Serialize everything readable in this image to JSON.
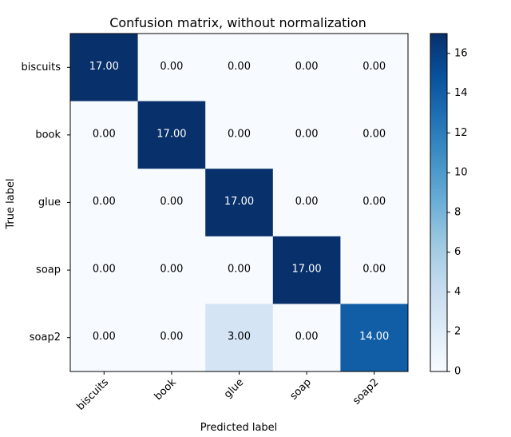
{
  "chart_data": {
    "type": "heatmap",
    "title": "Confusion matrix, without normalization",
    "xlabel": "Predicted label",
    "ylabel": "True label",
    "x_categories": [
      "biscuits",
      "book",
      "glue",
      "soap",
      "soap2"
    ],
    "y_categories": [
      "biscuits",
      "book",
      "glue",
      "soap",
      "soap2"
    ],
    "matrix": [
      [
        17,
        0,
        0,
        0,
        0
      ],
      [
        0,
        17,
        0,
        0,
        0
      ],
      [
        0,
        0,
        17,
        0,
        0
      ],
      [
        0,
        0,
        0,
        17,
        0
      ],
      [
        0,
        0,
        3,
        0,
        14
      ]
    ],
    "value_labels": [
      [
        "17.00",
        "0.00",
        "0.00",
        "0.00",
        "0.00"
      ],
      [
        "0.00",
        "17.00",
        "0.00",
        "0.00",
        "0.00"
      ],
      [
        "0.00",
        "0.00",
        "17.00",
        "0.00",
        "0.00"
      ],
      [
        "0.00",
        "0.00",
        "0.00",
        "17.00",
        "0.00"
      ],
      [
        "0.00",
        "0.00",
        "3.00",
        "0.00",
        "14.00"
      ]
    ],
    "colormap": "Blues",
    "color_range": [
      0,
      17
    ],
    "colorbar_ticks": [
      "0",
      "2",
      "4",
      "6",
      "8",
      "10",
      "12",
      "14",
      "16"
    ],
    "colors": {
      "min": "#f7fbff",
      "max": "#08306b",
      "text_dark": "#000000",
      "text_light": "#ffffff"
    }
  }
}
